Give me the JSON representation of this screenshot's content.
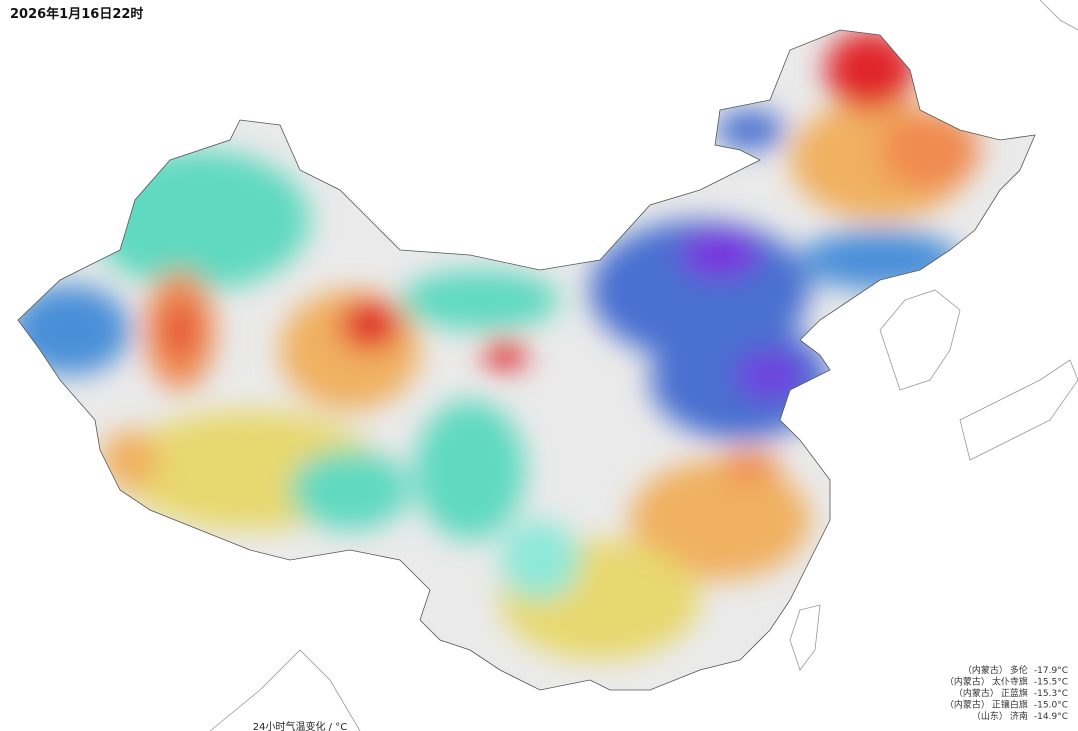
{
  "header": {
    "title": "2026年1月16日22时"
  },
  "ranking": [
    {
      "region": "（内蒙古）",
      "station": "多伦",
      "value": "-17.9°C"
    },
    {
      "region": "（内蒙古）",
      "station": "太仆寺旗",
      "value": "-15.5°C"
    },
    {
      "region": "（内蒙古）",
      "station": "正蓝旗",
      "value": "-15.3°C"
    },
    {
      "region": "（内蒙古）",
      "station": "正镶白旗",
      "value": "-15.0°C"
    },
    {
      "region": "（山东）",
      "station": "济南",
      "value": "-14.9°C"
    }
  ],
  "legend": {
    "title": "24小时气温变化 / °C"
  }
}
